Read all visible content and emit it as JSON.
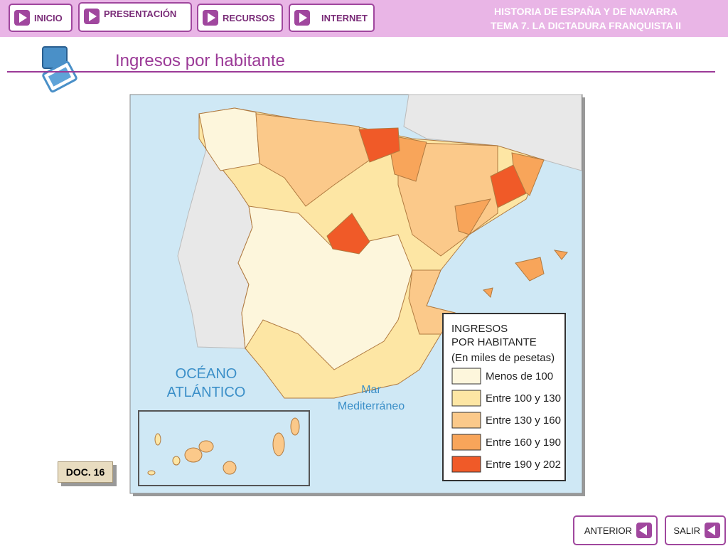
{
  "nav": {
    "buttons": [
      "INICIO",
      "PRESENTACIÓN",
      "RECURSOS",
      "INTERNET"
    ]
  },
  "header": {
    "lines": [
      "HISTORIA DE ESPAÑA Y DE NAVARRA",
      "TEMA 7. LA DICTADURA FRANQUISTA II"
    ]
  },
  "slide": {
    "title": "Ingresos por habitante"
  },
  "map": {
    "labels": {
      "ocean": [
        "OCÉANO",
        "ATLÁNTICO"
      ],
      "sea": [
        "Mar",
        "Mediterráneo"
      ]
    },
    "legend": {
      "title": [
        "INGRESOS",
        "POR HABITANTE"
      ],
      "subtitle": "(En miles de pesetas)",
      "items": [
        {
          "label": "Menos de 100",
          "color": "#fdf6dc"
        },
        {
          "label": "Entre 100 y 130",
          "color": "#fde6a4"
        },
        {
          "label": "Entre 130 y 160",
          "color": "#fbc98a"
        },
        {
          "label": "Entre 160 y 190",
          "color": "#f8a55a"
        },
        {
          "label": "Entre 190 y 202",
          "color": "#f05a28"
        }
      ]
    }
  },
  "doc": "DOC. 16",
  "footer": {
    "buttons": [
      "ANTERIOR",
      "SALIR"
    ]
  }
}
